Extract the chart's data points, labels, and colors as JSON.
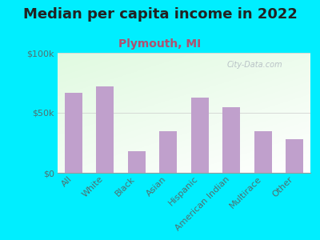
{
  "title": "Median per capita income in 2022",
  "subtitle": "Plymouth, MI",
  "categories": [
    "All",
    "White",
    "Black",
    "Asian",
    "Hispanic",
    "American Indian",
    "Multirace",
    "Other"
  ],
  "values": [
    67000,
    72000,
    18000,
    35000,
    63000,
    55000,
    35000,
    28000
  ],
  "bar_color": "#c0a0cc",
  "background_outer": "#00eeff",
  "title_color": "#222222",
  "subtitle_color": "#b05070",
  "tick_label_color": "#507070",
  "ytick_labels": [
    "$0",
    "$50k",
    "$100k"
  ],
  "ytick_values": [
    0,
    50000,
    100000
  ],
  "ylim": [
    0,
    100000
  ],
  "watermark": "City-Data.com",
  "title_fontsize": 13,
  "subtitle_fontsize": 10,
  "tick_fontsize": 8
}
